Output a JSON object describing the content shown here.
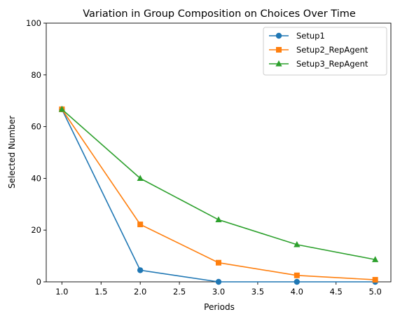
{
  "chart_data": {
    "type": "line",
    "title": "Variation in Group Composition on Choices Over Time",
    "xlabel": "Periods",
    "ylabel": "Selected Number",
    "xlim": [
      0.8,
      5.2
    ],
    "ylim": [
      0,
      100
    ],
    "x_ticks": [
      "1.0",
      "1.5",
      "2.0",
      "2.5",
      "3.0",
      "3.5",
      "4.0",
      "4.5",
      "5.0"
    ],
    "y_ticks": [
      "0",
      "20",
      "40",
      "60",
      "80",
      "100"
    ],
    "grid": false,
    "legend_position": "top-right",
    "x": [
      1,
      2,
      3,
      4,
      5
    ],
    "series": [
      {
        "name": "Setup1",
        "color": "#1f77b4",
        "marker": "circle",
        "values": [
          66.7,
          4.5,
          0.0,
          0.0,
          0.0
        ]
      },
      {
        "name": "Setup2_RepAgent",
        "color": "#ff7f0e",
        "marker": "square",
        "values": [
          66.7,
          22.2,
          7.4,
          2.5,
          0.8
        ]
      },
      {
        "name": "Setup3_RepAgent",
        "color": "#2ca02c",
        "marker": "triangle",
        "values": [
          66.7,
          40.0,
          24.0,
          14.4,
          8.6
        ]
      }
    ]
  }
}
